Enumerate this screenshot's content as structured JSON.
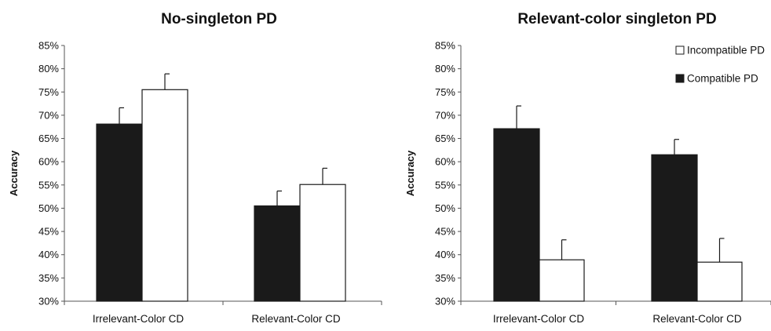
{
  "chart_data": [
    {
      "type": "bar",
      "title": "No-singleton PD",
      "ylabel": "Accuracy",
      "xlabel": "",
      "ylim": [
        0.3,
        0.85
      ],
      "ytick_step": 0.05,
      "ytick_labels": [
        "30%",
        "35%",
        "40%",
        "45%",
        "50%",
        "55%",
        "60%",
        "65%",
        "70%",
        "75%",
        "80%",
        "85%"
      ],
      "categories": [
        "Irrelevant-Color CD",
        "Relevant-Color CD"
      ],
      "series": [
        {
          "key": "compatible",
          "values": [
            0.681,
            0.505
          ],
          "errors": [
            0.035,
            0.032
          ],
          "fill": "#1a1a1a"
        },
        {
          "key": "incompatible",
          "values": [
            0.755,
            0.551
          ],
          "errors": [
            0.034,
            0.035
          ],
          "fill": "#ffffff"
        }
      ],
      "legend": null
    },
    {
      "type": "bar",
      "title": "Relevant-color singleton PD",
      "ylabel": "Accuracy",
      "xlabel": "",
      "ylim": [
        0.3,
        0.85
      ],
      "ytick_step": 0.05,
      "ytick_labels": [
        "30%",
        "35%",
        "40%",
        "45%",
        "50%",
        "55%",
        "60%",
        "65%",
        "70%",
        "75%",
        "80%",
        "85%"
      ],
      "categories": [
        "Irrelevant-Color CD",
        "Relevant-Color CD"
      ],
      "series": [
        {
          "key": "compatible",
          "name": "Compatible PD",
          "values": [
            0.671,
            0.615
          ],
          "errors": [
            0.049,
            0.033
          ],
          "fill": "#1a1a1a"
        },
        {
          "key": "incompatible",
          "name": "Incompatible PD",
          "values": [
            0.389,
            0.384
          ],
          "errors": [
            0.043,
            0.051
          ],
          "fill": "#ffffff"
        }
      ],
      "legend": {
        "placement": "top-right",
        "items": [
          {
            "label": "Incompatible PD",
            "fill": "#ffffff"
          },
          {
            "label": "Compatible PD",
            "fill": "#1a1a1a"
          }
        ]
      }
    }
  ]
}
